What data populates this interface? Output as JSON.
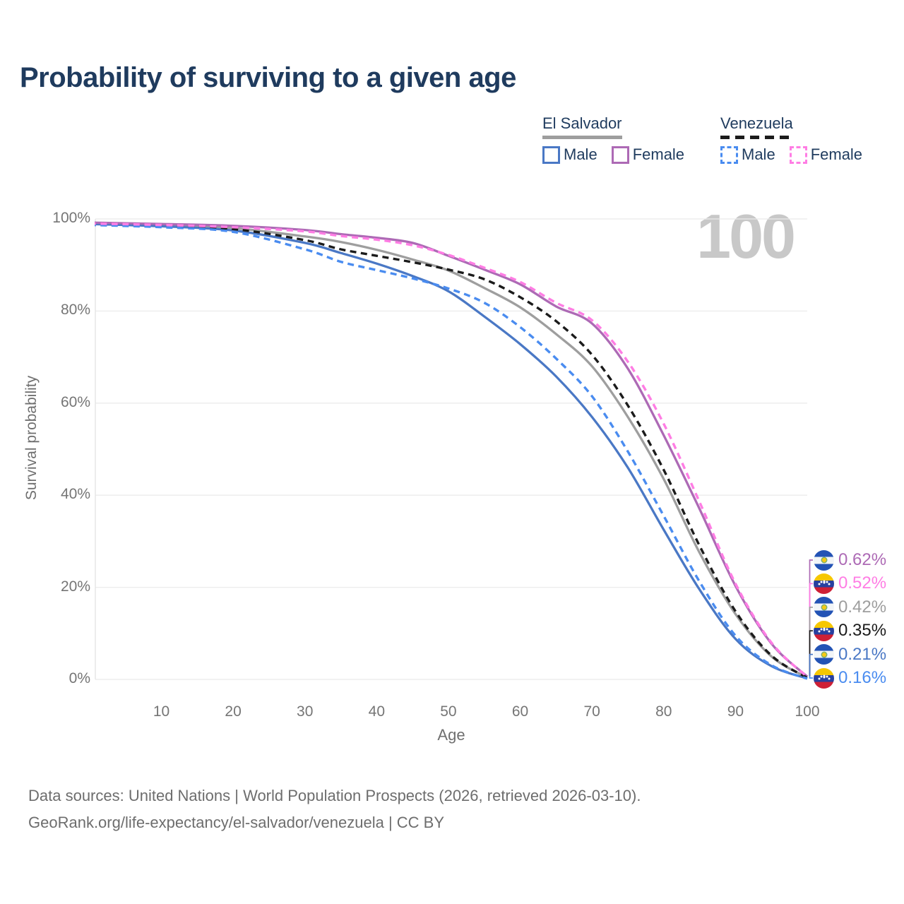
{
  "title": "Probability of surviving to a given age",
  "watermark": "100",
  "legend": {
    "groups": [
      {
        "country": "El Salvador",
        "line_style": "solid",
        "line_color": "#9e9e9e",
        "items": [
          {
            "label": "Male",
            "color": "#4a78c5"
          },
          {
            "label": "Female",
            "color": "#ad6ab5"
          }
        ]
      },
      {
        "country": "Venezuela",
        "line_style": "dashed",
        "line_color": "#1b1b1b",
        "items": [
          {
            "label": "Male",
            "color": "#4a8cf0"
          },
          {
            "label": "Female",
            "color": "#ff7de4"
          }
        ]
      }
    ]
  },
  "y_axis": {
    "title": "Survival probability",
    "ticks": [
      "0%",
      "20%",
      "40%",
      "60%",
      "80%",
      "100%"
    ]
  },
  "x_axis": {
    "title": "Age",
    "ticks": [
      10,
      20,
      30,
      40,
      50,
      60,
      70,
      80,
      90,
      100
    ]
  },
  "end_labels": [
    {
      "flag": "el-salvador",
      "value": "0.62%",
      "color": "#ad6ab5",
      "series": "el-salvador-female"
    },
    {
      "flag": "venezuela",
      "value": "0.52%",
      "color": "#ff7de4",
      "series": "venezuela-female"
    },
    {
      "flag": "el-salvador",
      "value": "0.42%",
      "color": "#9e9e9e",
      "series": "el-salvador-total"
    },
    {
      "flag": "venezuela",
      "value": "0.35%",
      "color": "#1b1b1b",
      "series": "venezuela-total"
    },
    {
      "flag": "el-salvador",
      "value": "0.21%",
      "color": "#4a78c5",
      "series": "el-salvador-male"
    },
    {
      "flag": "venezuela",
      "value": "0.16%",
      "color": "#4a8cf0",
      "series": "venezuela-male"
    }
  ],
  "footer": {
    "line1": "Data sources: United Nations | World Population Prospects (2026, retrieved 2026-03-10).",
    "line2": "GeoRank.org/life-expectancy/el-salvador/venezuela | CC BY"
  },
  "chart_data": {
    "type": "line",
    "title": "Probability of surviving to a given age",
    "xlabel": "Age",
    "ylabel": "Survival probability",
    "xlim": [
      0,
      100
    ],
    "ylim": [
      0,
      100
    ],
    "grid": true,
    "legend_position": "top-right",
    "units": "percent",
    "x": [
      0,
      10,
      20,
      30,
      35,
      40,
      45,
      50,
      55,
      60,
      65,
      70,
      75,
      80,
      85,
      90,
      95,
      100
    ],
    "series": [
      {
        "id": "el-salvador-total",
        "name": "El Salvador Both sexes",
        "color": "#9e9e9e",
        "dash": false,
        "values": [
          99.0,
          98.6,
          98.0,
          96.2,
          95.0,
          93.3,
          91.2,
          88.8,
          85.0,
          80.8,
          75.0,
          68.0,
          57.0,
          43.5,
          27.5,
          14.2,
          5.0,
          0.42
        ]
      },
      {
        "id": "el-salvador-male",
        "name": "El Salvador Male",
        "color": "#4a78c5",
        "dash": false,
        "values": [
          98.9,
          98.4,
          97.5,
          94.8,
          92.6,
          90.3,
          87.6,
          84.3,
          78.8,
          72.8,
          65.8,
          57.0,
          46.0,
          32.5,
          19.5,
          8.8,
          2.9,
          0.21
        ]
      },
      {
        "id": "el-salvador-female",
        "name": "El Salvador Female",
        "color": "#ad6ab5",
        "dash": false,
        "values": [
          99.2,
          98.9,
          98.5,
          97.6,
          96.7,
          95.9,
          94.8,
          92.0,
          89.0,
          85.8,
          81.0,
          77.3,
          67.5,
          53.0,
          37.0,
          20.3,
          7.8,
          0.62
        ]
      },
      {
        "id": "venezuela-total",
        "name": "Venezuela Both sexes",
        "color": "#1b1b1b",
        "dash": true,
        "values": [
          98.9,
          98.5,
          97.8,
          95.4,
          93.4,
          92.0,
          90.6,
          89.0,
          86.9,
          83.0,
          77.8,
          70.5,
          59.5,
          45.5,
          29.0,
          14.8,
          5.2,
          0.35
        ]
      },
      {
        "id": "venezuela-male",
        "name": "Venezuela Male",
        "color": "#4a8cf0",
        "dash": true,
        "values": [
          98.7,
          98.2,
          97.2,
          93.4,
          90.7,
          88.9,
          87.1,
          84.9,
          81.8,
          76.5,
          69.7,
          61.5,
          49.5,
          35.5,
          21.2,
          9.5,
          3.1,
          0.16
        ]
      },
      {
        "id": "venezuela-female",
        "name": "Venezuela Female",
        "color": "#ff7de4",
        "dash": true,
        "values": [
          99.0,
          98.7,
          98.2,
          97.3,
          96.3,
          95.5,
          94.3,
          92.2,
          89.4,
          86.3,
          81.8,
          78.0,
          69.0,
          55.5,
          38.5,
          20.8,
          8.0,
          0.52
        ]
      }
    ]
  }
}
